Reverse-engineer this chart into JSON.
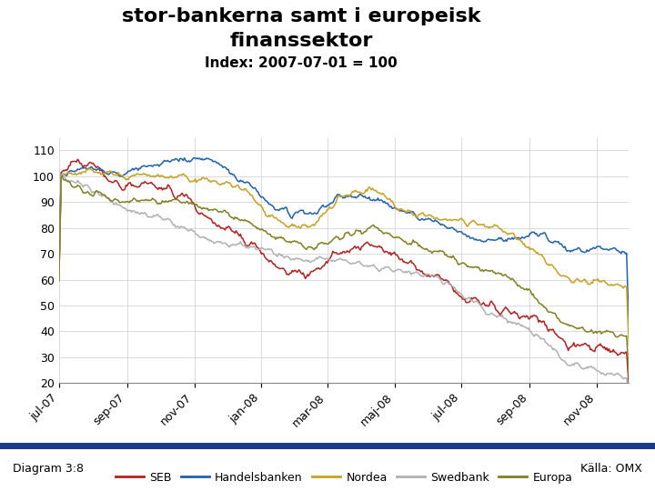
{
  "title_line1": "stor-bankerna samt i europeisk",
  "title_line2": "finanssektor",
  "subtitle": "Index: 2007-07-01 = 100",
  "series_colors": {
    "SEB": "#b22020",
    "Handelsbanken": "#2060b0",
    "Nordea": "#c8a020",
    "Swedbank": "#b0b0b0",
    "Europa": "#808020"
  },
  "legend_labels": [
    "SEB",
    "Handelsbanken",
    "Nordea",
    "Swedbank",
    "Europa"
  ],
  "xtick_labels": [
    "jul-07",
    "sep-07",
    "nov-07",
    "jan-08",
    "mar-08",
    "maj-08",
    "jul-08",
    "sep-08",
    "nov-08"
  ],
  "ylim": [
    20,
    115
  ],
  "yticks": [
    20,
    30,
    40,
    50,
    60,
    70,
    80,
    90,
    100,
    110
  ],
  "diagram_label": "Diagram 3:8",
  "source_label": "Källa: OMX",
  "background_color": "#ffffff",
  "title_fontsize": 16,
  "subtitle_fontsize": 11,
  "legend_fontsize": 9,
  "tick_fontsize": 9
}
